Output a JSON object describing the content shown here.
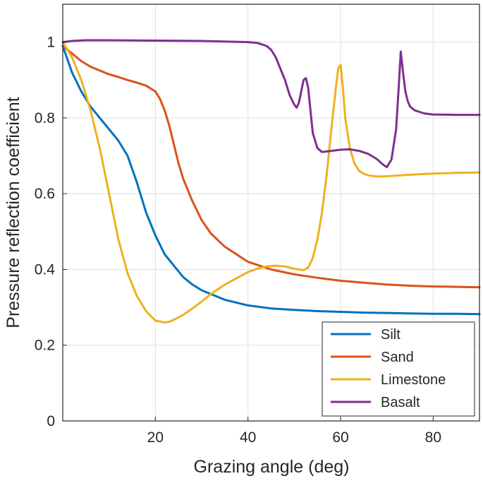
{
  "chart_data": {
    "type": "line",
    "title": "",
    "xlabel": "Grazing angle (deg)",
    "ylabel": "Pressure reflection coefficient",
    "xlim": [
      0,
      90
    ],
    "ylim": [
      0,
      1.1
    ],
    "xticks": [
      20,
      40,
      60,
      80
    ],
    "yticks": [
      0,
      0.2,
      0.4,
      0.6,
      0.8,
      1
    ],
    "xtick_labels": [
      "20",
      "40",
      "60",
      "80"
    ],
    "ytick_labels": [
      "0",
      "0.2",
      "0.4",
      "0.6",
      "0.8",
      "1"
    ],
    "grid": true,
    "legend_position": "bottom-right",
    "series": [
      {
        "name": "Silt",
        "color": "#0072BD",
        "x": [
          0,
          2,
          4,
          6,
          8,
          10,
          12,
          14,
          16,
          18,
          20,
          22,
          24,
          26,
          28,
          30,
          35,
          40,
          45,
          50,
          55,
          60,
          65,
          70,
          75,
          80,
          85,
          90
        ],
        "y": [
          0.99,
          0.92,
          0.87,
          0.83,
          0.8,
          0.77,
          0.74,
          0.7,
          0.63,
          0.55,
          0.49,
          0.44,
          0.41,
          0.38,
          0.36,
          0.345,
          0.32,
          0.305,
          0.297,
          0.293,
          0.29,
          0.288,
          0.286,
          0.285,
          0.284,
          0.283,
          0.283,
          0.282
        ]
      },
      {
        "name": "Sand",
        "color": "#D95319",
        "x": [
          0,
          2,
          4,
          6,
          8,
          10,
          12,
          14,
          16,
          18,
          20,
          21,
          22,
          23,
          24,
          25,
          26,
          28,
          30,
          32,
          35,
          40,
          45,
          50,
          55,
          60,
          65,
          70,
          75,
          80,
          85,
          90
        ],
        "y": [
          0.99,
          0.97,
          0.95,
          0.935,
          0.925,
          0.915,
          0.908,
          0.9,
          0.893,
          0.885,
          0.87,
          0.85,
          0.82,
          0.78,
          0.73,
          0.68,
          0.64,
          0.58,
          0.53,
          0.495,
          0.46,
          0.42,
          0.4,
          0.387,
          0.378,
          0.37,
          0.365,
          0.36,
          0.357,
          0.355,
          0.354,
          0.353
        ]
      },
      {
        "name": "Limestone",
        "color": "#EDB120",
        "x": [
          0,
          1,
          2,
          4,
          6,
          8,
          10,
          12,
          14,
          16,
          18,
          20,
          22,
          23,
          24,
          26,
          28,
          30,
          32,
          35,
          38,
          40,
          42,
          44,
          46,
          48,
          50,
          52,
          53,
          54,
          55,
          56,
          57,
          58,
          59,
          59.5,
          60,
          60.5,
          61,
          62,
          63,
          64,
          65,
          66,
          68,
          70,
          75,
          80,
          85,
          90
        ],
        "y": [
          1.0,
          0.98,
          0.96,
          0.9,
          0.82,
          0.72,
          0.6,
          0.48,
          0.39,
          0.33,
          0.29,
          0.265,
          0.26,
          0.262,
          0.267,
          0.28,
          0.297,
          0.315,
          0.335,
          0.36,
          0.38,
          0.393,
          0.402,
          0.408,
          0.41,
          0.408,
          0.402,
          0.398,
          0.405,
          0.43,
          0.48,
          0.55,
          0.65,
          0.77,
          0.88,
          0.93,
          0.94,
          0.88,
          0.8,
          0.72,
          0.68,
          0.66,
          0.653,
          0.648,
          0.645,
          0.646,
          0.65,
          0.653,
          0.655,
          0.656
        ]
      },
      {
        "name": "Basalt",
        "color": "#7E2F8E",
        "x": [
          0,
          2,
          5,
          10,
          20,
          30,
          40,
          42,
          44,
          45,
          46,
          47,
          48,
          49,
          50,
          50.5,
          51,
          51.5,
          52,
          52.5,
          53,
          53.5,
          54,
          55,
          56,
          58,
          60,
          62,
          64,
          66,
          68,
          69,
          70,
          71,
          72,
          72.5,
          73,
          73.5,
          74,
          74.5,
          75,
          76,
          78,
          80,
          85,
          90
        ],
        "y": [
          1.0,
          1.003,
          1.005,
          1.005,
          1.004,
          1.003,
          1.0,
          0.998,
          0.99,
          0.98,
          0.96,
          0.93,
          0.9,
          0.86,
          0.835,
          0.827,
          0.84,
          0.87,
          0.9,
          0.905,
          0.88,
          0.82,
          0.76,
          0.72,
          0.71,
          0.713,
          0.716,
          0.717,
          0.713,
          0.705,
          0.69,
          0.678,
          0.67,
          0.69,
          0.77,
          0.87,
          0.975,
          0.92,
          0.87,
          0.845,
          0.83,
          0.82,
          0.812,
          0.809,
          0.808,
          0.808
        ]
      }
    ]
  }
}
